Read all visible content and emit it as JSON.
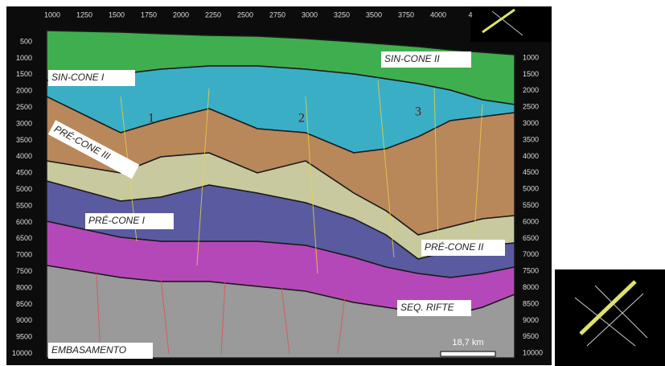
{
  "figure": {
    "top_axis": [
      1000,
      1250,
      1500,
      1750,
      2000,
      2250,
      2500,
      2750,
      3000,
      3250,
      3500,
      3750,
      4000,
      4
    ],
    "left_axis": [
      500,
      1000,
      1500,
      2000,
      2500,
      3000,
      3500,
      4000,
      4500,
      5000,
      5500,
      6000,
      6500,
      7000,
      7500,
      8000,
      8500,
      9000,
      9500,
      10000
    ],
    "right_axis": [
      1000,
      1500,
      2000,
      2500,
      3000,
      3500,
      4000,
      4500,
      5000,
      5500,
      6000,
      6500,
      7000,
      7500,
      8000,
      8500,
      9000,
      9500,
      10000
    ],
    "units": [
      "SIN-CONE I",
      "SIN-CONE II",
      "PRÉ-CONE III",
      "PRÉ-CONE I",
      "PRÉ-CONE II",
      "SEQ. RIFTE",
      "EMBASAMENTO"
    ],
    "markers": [
      "1",
      "2",
      "3"
    ],
    "scale_bar": "18,7 km"
  }
}
